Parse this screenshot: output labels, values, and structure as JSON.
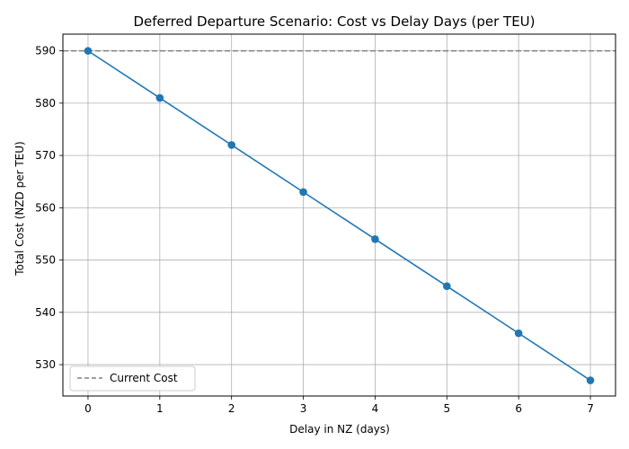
{
  "chart_data": {
    "type": "line",
    "title": "Deferred Departure Scenario: Cost vs Delay Days (per TEU)",
    "xlabel": "Delay in NZ (days)",
    "ylabel": "Total Cost (NZD per TEU)",
    "x": [
      0,
      1,
      2,
      3,
      4,
      5,
      6,
      7
    ],
    "series": [
      {
        "values": [
          590,
          581,
          572,
          563,
          554,
          545,
          536,
          527
        ],
        "color": "#1f77b4",
        "marker": "circle"
      }
    ],
    "reference_line": {
      "name": "Current Cost",
      "value": 590,
      "color": "#808080",
      "style": "dashed"
    },
    "xticks": [
      "0",
      "1",
      "2",
      "3",
      "4",
      "5",
      "6",
      "7"
    ],
    "yticks": [
      "530",
      "540",
      "550",
      "560",
      "570",
      "580",
      "590"
    ],
    "xlim": [
      -0.35,
      7.35
    ],
    "ylim": [
      524.0,
      593.2
    ],
    "grid": true,
    "legend_position": "lower-left"
  }
}
